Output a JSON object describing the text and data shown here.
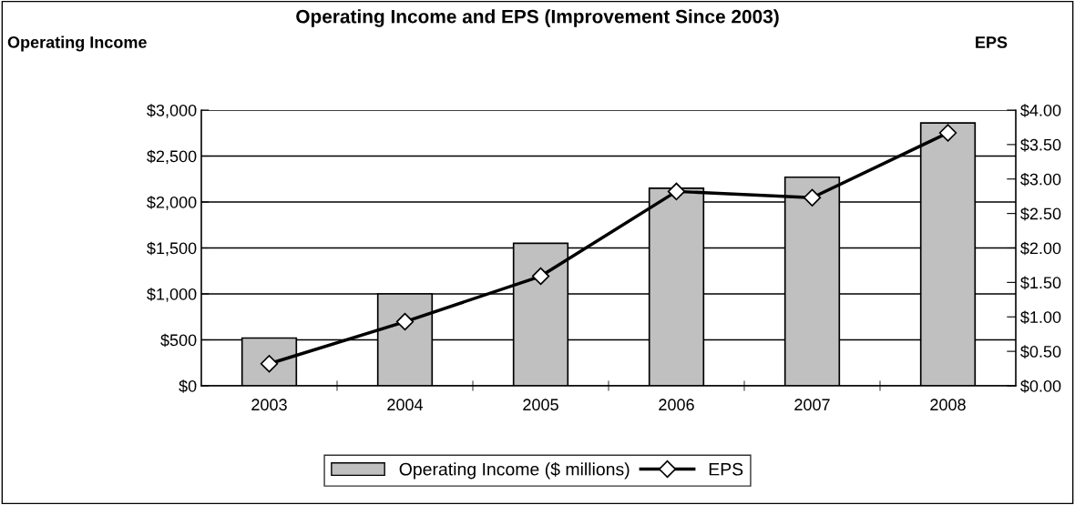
{
  "chart_data": {
    "type": "bar",
    "title": "Operating Income and EPS (Improvement Since 2003)",
    "ylabel": "Operating Income",
    "y2label": "EPS",
    "categories": [
      "2003",
      "2004",
      "2005",
      "2006",
      "2007",
      "2008"
    ],
    "series": [
      {
        "name": "Operating Income ($ millions)",
        "color": "#c0c0c0",
        "values": [
          520,
          1000,
          1550,
          2150,
          2270,
          2860
        ]
      },
      {
        "name": "EPS",
        "type": "line",
        "axis": "y2",
        "color": "#000000",
        "marker": "diamond",
        "line_style": "solid",
        "values": [
          0.32,
          0.93,
          1.59,
          2.82,
          2.73,
          3.67
        ]
      }
    ],
    "ylim": [
      0,
      3000
    ],
    "yticks": [
      {
        "value": 0,
        "label": "$0"
      },
      {
        "value": 500,
        "label": "$500"
      },
      {
        "value": 1000,
        "label": "$1,000"
      },
      {
        "value": 1500,
        "label": "$1,500"
      },
      {
        "value": 2000,
        "label": "$2,000"
      },
      {
        "value": 2500,
        "label": "$2,500"
      },
      {
        "value": 3000,
        "label": "$3,000"
      }
    ],
    "y2lim": [
      0,
      4
    ],
    "y2ticks": [
      {
        "value": 0,
        "label": "$0.00"
      },
      {
        "value": 0.5,
        "label": "$0.50"
      },
      {
        "value": 1,
        "label": "$1.00"
      },
      {
        "value": 1.5,
        "label": "$1.50"
      },
      {
        "value": 2,
        "label": "$2.00"
      },
      {
        "value": 2.5,
        "label": "$2.50"
      },
      {
        "value": 3,
        "label": "$3.00"
      },
      {
        "value": 3.5,
        "label": "$3.50"
      },
      {
        "value": 4,
        "label": "$4.00"
      }
    ],
    "grid": "y",
    "legend": "bottom"
  }
}
